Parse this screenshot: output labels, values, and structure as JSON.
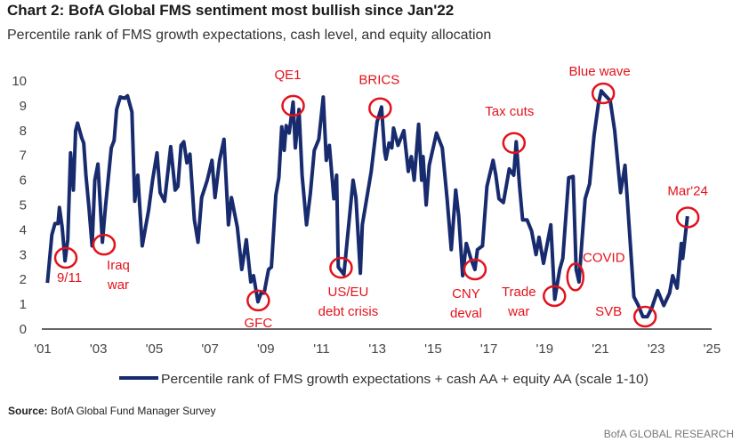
{
  "title": "Chart 2: BofA Global FMS sentiment most bullish since Jan'22",
  "subtitle": "Percentile rank of FMS growth expectations, cash level, and equity allocation",
  "source_label": "Source:",
  "source_text": "BofA Global Fund Manager Survey",
  "brand": "BofA GLOBAL RESEARCH",
  "colors": {
    "line": "#172b6e",
    "annotation": "#e3121b",
    "axis": "#666666"
  },
  "chart_data": {
    "type": "line",
    "title": "Chart 2: BofA Global FMS sentiment most bullish since Jan'22",
    "xlabel": "",
    "ylabel": "",
    "xlim": [
      2001,
      2025
    ],
    "ylim": [
      0,
      10
    ],
    "x_ticks": [
      2001,
      2003,
      2005,
      2007,
      2009,
      2011,
      2013,
      2015,
      2017,
      2019,
      2021,
      2023,
      2025
    ],
    "x_tick_labels": [
      "'01",
      "'03",
      "'05",
      "'07",
      "'09",
      "'11",
      "'13",
      "'15",
      "'17",
      "'19",
      "'21",
      "'23",
      "'25"
    ],
    "y_ticks": [
      0,
      1,
      2,
      3,
      4,
      5,
      6,
      7,
      8,
      9,
      10
    ],
    "y_tick_labels": [
      "0",
      "1",
      "2",
      "3",
      "4",
      "5",
      "6",
      "7",
      "8",
      "9",
      "10"
    ],
    "grid": false,
    "legend_position": "bottom",
    "series": [
      {
        "name": "Percentile rank of FMS growth expectations + cash AA + equity AA (scale 1-10)",
        "points": [
          [
            2001.17,
            1.86
          ],
          [
            2001.33,
            3.8
          ],
          [
            2001.44,
            4.25
          ],
          [
            2001.55,
            4.25
          ],
          [
            2001.6,
            4.9
          ],
          [
            2001.7,
            4.1
          ],
          [
            2001.8,
            2.75
          ],
          [
            2001.9,
            3.6
          ],
          [
            2002.0,
            7.1
          ],
          [
            2002.1,
            5.6
          ],
          [
            2002.18,
            8.0
          ],
          [
            2002.25,
            8.3
          ],
          [
            2002.4,
            7.7
          ],
          [
            2002.47,
            7.5
          ],
          [
            2002.55,
            6.2
          ],
          [
            2002.66,
            4.9
          ],
          [
            2002.77,
            3.35
          ],
          [
            2002.87,
            6.0
          ],
          [
            2002.98,
            6.65
          ],
          [
            2003.14,
            3.5
          ],
          [
            2003.25,
            4.9
          ],
          [
            2003.46,
            7.3
          ],
          [
            2003.56,
            7.6
          ],
          [
            2003.65,
            8.85
          ],
          [
            2003.78,
            9.35
          ],
          [
            2003.94,
            9.3
          ],
          [
            2004.04,
            9.4
          ],
          [
            2004.2,
            8.75
          ],
          [
            2004.3,
            5.15
          ],
          [
            2004.41,
            6.2
          ],
          [
            2004.57,
            3.35
          ],
          [
            2004.8,
            4.8
          ],
          [
            2004.94,
            6.0
          ],
          [
            2005.1,
            7.1
          ],
          [
            2005.21,
            5.5
          ],
          [
            2005.37,
            5.15
          ],
          [
            2005.59,
            7.35
          ],
          [
            2005.75,
            5.6
          ],
          [
            2005.85,
            5.75
          ],
          [
            2005.96,
            7.4
          ],
          [
            2006.06,
            7.55
          ],
          [
            2006.17,
            6.7
          ],
          [
            2006.28,
            7.05
          ],
          [
            2006.44,
            4.4
          ],
          [
            2006.57,
            3.5
          ],
          [
            2006.7,
            5.3
          ],
          [
            2006.9,
            6.0
          ],
          [
            2007.07,
            6.8
          ],
          [
            2007.18,
            5.3
          ],
          [
            2007.34,
            6.8
          ],
          [
            2007.5,
            7.65
          ],
          [
            2007.66,
            4.2
          ],
          [
            2007.77,
            5.3
          ],
          [
            2007.98,
            4.1
          ],
          [
            2008.14,
            2.4
          ],
          [
            2008.3,
            3.6
          ],
          [
            2008.46,
            1.9
          ],
          [
            2008.56,
            2.15
          ],
          [
            2008.72,
            1.1
          ],
          [
            2008.83,
            1.45
          ],
          [
            2008.94,
            1.45
          ],
          [
            2009.1,
            2.4
          ],
          [
            2009.2,
            2.5
          ],
          [
            2009.36,
            5.4
          ],
          [
            2009.47,
            6.1
          ],
          [
            2009.57,
            8.15
          ],
          [
            2009.66,
            7.2
          ],
          [
            2009.73,
            8.2
          ],
          [
            2009.84,
            7.9
          ],
          [
            2009.98,
            9.15
          ],
          [
            2010.06,
            7.3
          ],
          [
            2010.19,
            8.85
          ],
          [
            2010.3,
            6.2
          ],
          [
            2010.46,
            4.2
          ],
          [
            2010.6,
            5.5
          ],
          [
            2010.74,
            7.2
          ],
          [
            2010.9,
            7.65
          ],
          [
            2011.06,
            9.35
          ],
          [
            2011.17,
            6.8
          ],
          [
            2011.28,
            7.4
          ],
          [
            2011.44,
            5.25
          ],
          [
            2011.54,
            6.2
          ],
          [
            2011.6,
            2.5
          ],
          [
            2011.8,
            2.2
          ],
          [
            2012.13,
            6.0
          ],
          [
            2012.23,
            5.3
          ],
          [
            2012.39,
            2.25
          ],
          [
            2012.46,
            4.2
          ],
          [
            2012.78,
            6.35
          ],
          [
            2012.99,
            8.35
          ],
          [
            2013.15,
            8.95
          ],
          [
            2013.26,
            7.15
          ],
          [
            2013.31,
            6.85
          ],
          [
            2013.42,
            7.5
          ],
          [
            2013.52,
            7.3
          ],
          [
            2013.58,
            8.1
          ],
          [
            2013.74,
            7.4
          ],
          [
            2013.95,
            8.0
          ],
          [
            2014.11,
            6.35
          ],
          [
            2014.22,
            6.95
          ],
          [
            2014.32,
            6.0
          ],
          [
            2014.48,
            8.25
          ],
          [
            2014.59,
            6.0
          ],
          [
            2014.64,
            6.95
          ],
          [
            2014.75,
            5.0
          ],
          [
            2014.86,
            6.6
          ],
          [
            2015.12,
            7.9
          ],
          [
            2015.33,
            7.3
          ],
          [
            2015.5,
            5.25
          ],
          [
            2015.65,
            3.2
          ],
          [
            2015.81,
            5.6
          ],
          [
            2015.92,
            4.55
          ],
          [
            2016.06,
            2.15
          ],
          [
            2016.19,
            3.45
          ],
          [
            2016.35,
            2.85
          ],
          [
            2016.5,
            2.4
          ],
          [
            2016.59,
            3.2
          ],
          [
            2016.77,
            3.35
          ],
          [
            2016.93,
            5.75
          ],
          [
            2017.15,
            6.8
          ],
          [
            2017.25,
            6.2
          ],
          [
            2017.36,
            5.25
          ],
          [
            2017.52,
            5.1
          ],
          [
            2017.73,
            6.45
          ],
          [
            2017.89,
            6.2
          ],
          [
            2017.98,
            7.55
          ],
          [
            2018.1,
            5.75
          ],
          [
            2018.21,
            4.4
          ],
          [
            2018.37,
            4.4
          ],
          [
            2018.53,
            3.95
          ],
          [
            2018.69,
            3.0
          ],
          [
            2018.8,
            3.7
          ],
          [
            2018.96,
            2.65
          ],
          [
            2019.22,
            4.2
          ],
          [
            2019.36,
            1.2
          ],
          [
            2019.54,
            2.4
          ],
          [
            2019.65,
            2.85
          ],
          [
            2019.86,
            6.1
          ],
          [
            2020.02,
            6.15
          ],
          [
            2020.13,
            2.4
          ],
          [
            2020.23,
            1.9
          ],
          [
            2020.34,
            3.6
          ],
          [
            2020.45,
            5.25
          ],
          [
            2020.61,
            5.85
          ],
          [
            2020.77,
            7.8
          ],
          [
            2020.93,
            9.1
          ],
          [
            2021.03,
            9.6
          ],
          [
            2021.14,
            9.45
          ],
          [
            2021.35,
            9.2
          ],
          [
            2021.51,
            8.0
          ],
          [
            2021.72,
            5.5
          ],
          [
            2021.88,
            6.6
          ],
          [
            2021.99,
            4.8
          ],
          [
            2022.2,
            1.3
          ],
          [
            2022.36,
            0.95
          ],
          [
            2022.52,
            0.5
          ],
          [
            2022.68,
            0.5
          ],
          [
            2022.84,
            0.85
          ],
          [
            2023.05,
            1.55
          ],
          [
            2023.27,
            0.95
          ],
          [
            2023.48,
            1.45
          ],
          [
            2023.59,
            2.15
          ],
          [
            2023.75,
            1.65
          ],
          [
            2023.9,
            3.45
          ],
          [
            2023.95,
            2.85
          ],
          [
            2024.12,
            4.55
          ]
        ]
      }
    ],
    "annotations": [
      {
        "lines": [
          "9/11"
        ],
        "x": 2001.83,
        "y": 2.87
      },
      {
        "lines": [
          "Iraq",
          "war"
        ],
        "x": 2003.2,
        "y": 3.4
      },
      {
        "lines": [
          "GFC"
        ],
        "x": 2008.73,
        "y": 1.15
      },
      {
        "lines": [
          "QE1"
        ],
        "x": 2009.98,
        "y": 9.0
      },
      {
        "lines": [
          "US/EU",
          "debt crisis"
        ],
        "x": 2011.7,
        "y": 2.47
      },
      {
        "lines": [
          "BRICS"
        ],
        "x": 2013.1,
        "y": 8.9
      },
      {
        "lines": [
          "CNY",
          "deval"
        ],
        "x": 2016.5,
        "y": 2.4
      },
      {
        "lines": [
          "Tax cuts"
        ],
        "x": 2017.9,
        "y": 7.5
      },
      {
        "lines": [
          "Trade",
          "war"
        ],
        "x": 2019.35,
        "y": 1.33
      },
      {
        "lines": [
          "COVID"
        ],
        "x": 2020.1,
        "y": 2.1
      },
      {
        "lines": [
          "Blue wave"
        ],
        "x": 2021.1,
        "y": 9.5
      },
      {
        "lines": [
          "SVB"
        ],
        "x": 2022.6,
        "y": 0.5
      },
      {
        "lines": [
          "Mar'24"
        ],
        "x": 2024.13,
        "y": 4.5
      }
    ]
  }
}
